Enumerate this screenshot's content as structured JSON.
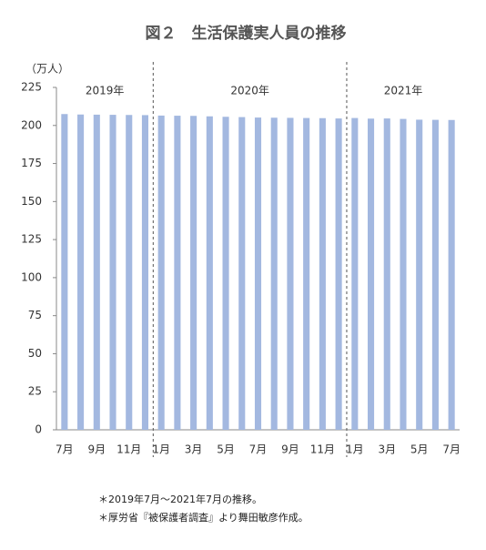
{
  "chart_data": {
    "type": "bar",
    "title": "図２　生活保護実人員の推移",
    "y_unit": "（万人）",
    "categories": [
      "7月",
      null,
      "9月",
      null,
      "11月",
      null,
      "1月",
      null,
      "3月",
      null,
      "5月",
      null,
      "7月",
      null,
      "9月",
      null,
      "11月",
      null,
      "1月",
      null,
      "3月",
      null,
      "5月",
      null,
      "7月"
    ],
    "values": [
      207.5,
      207.2,
      207.1,
      207.0,
      206.9,
      206.8,
      206.5,
      206.4,
      206.3,
      206.0,
      205.7,
      205.5,
      205.2,
      205.1,
      205.0,
      204.9,
      204.8,
      204.6,
      204.9,
      204.5,
      204.6,
      204.3,
      203.8,
      203.7,
      203.6
    ],
    "year_labels": [
      "2019年",
      "2020年",
      "2021年"
    ],
    "color": "#a3b8e0",
    "ylim": [
      0,
      225
    ],
    "yticks": [
      0,
      25,
      50,
      75,
      100,
      125,
      150,
      175,
      200,
      225
    ],
    "notes": [
      "＊2019年7月～2021年7月の推移。",
      "＊厚労省『被保護者調査』より舞田敏彦作成。"
    ]
  }
}
